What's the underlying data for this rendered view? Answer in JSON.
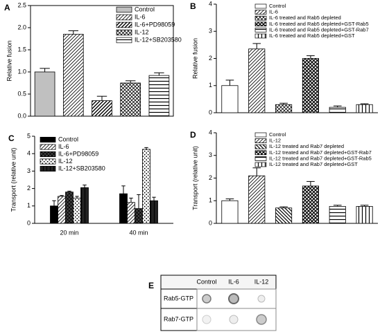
{
  "chart_data": [
    {
      "type": "bar",
      "label": "A",
      "ylabel": "Relative fusion",
      "ylim": [
        0,
        2.5
      ],
      "yticks": [
        {
          "value": 0,
          "label": "0.0"
        },
        {
          "value": 0.5,
          "label": "0.5"
        },
        {
          "value": 1,
          "label": "1.0"
        },
        {
          "value": 1.5,
          "label": "1.5"
        },
        {
          "value": 2,
          "label": "2.0"
        },
        {
          "value": 2.5,
          "label": "2.5"
        }
      ],
      "series": [
        {
          "name": "Control",
          "color": "#c0c0c0",
          "values": [
            1.0
          ],
          "errors": [
            0.08
          ]
        },
        {
          "name": "IL-6",
          "color": "#ffffff",
          "values": [
            1.85
          ],
          "errors": [
            0.08
          ]
        },
        {
          "name": "IL-6+PD98059",
          "color": "#ffffff",
          "values": [
            0.35
          ],
          "errors": [
            0.1
          ]
        },
        {
          "name": "IL-12",
          "color": "#ffffff",
          "values": [
            0.75
          ],
          "errors": [
            0.05
          ]
        },
        {
          "name": "IL-12+SB203580",
          "color": "#ffffff",
          "values": [
            0.92
          ],
          "errors": [
            0.06
          ]
        }
      ]
    },
    {
      "type": "bar",
      "label": "B",
      "ylabel": "Relative fusion",
      "ylim": [
        0,
        4
      ],
      "yticks": [
        0,
        1,
        2,
        3,
        4
      ],
      "series": [
        {
          "name": "Control",
          "color": "#ffffff",
          "values": [
            1.0
          ],
          "errors": [
            0.2
          ]
        },
        {
          "name": "IL-6",
          "color": "#ffffff",
          "values": [
            2.35
          ],
          "errors": [
            0.2
          ]
        },
        {
          "name": "IL-6 treated and Rab5 depleted",
          "color": "#ffffff",
          "values": [
            0.3
          ],
          "errors": [
            0.05
          ]
        },
        {
          "name": "IL-6 treated and Rab5 depleted+GST-Rab5",
          "color": "#ffffff",
          "values": [
            2.0
          ],
          "errors": [
            0.1
          ]
        },
        {
          "name": "IL-6 treated and Rab5 depleted+GST-Rab7",
          "color": "#ffffff",
          "values": [
            0.2
          ],
          "errors": [
            0.05
          ]
        },
        {
          "name": "IL-6 treated and Rab5 depleted+GST",
          "color": "#ffffff",
          "values": [
            0.3
          ],
          "errors": [
            0.03
          ]
        }
      ]
    },
    {
      "type": "bar",
      "label": "C",
      "ylabel": "Transport (relative unit)",
      "ylim": [
        0,
        5
      ],
      "yticks": [
        0,
        1,
        2,
        3,
        4,
        5
      ],
      "categories": [
        "20 min",
        "40 min"
      ],
      "series": [
        {
          "name": "Control",
          "color": "#000000",
          "values": [
            1.0,
            1.7
          ],
          "errors": [
            0.3,
            0.45
          ]
        },
        {
          "name": "IL-6",
          "color": "#ffffff",
          "values": [
            1.55,
            1.2
          ],
          "errors": [
            0.05,
            0.25
          ]
        },
        {
          "name": "IL-6+PD98059",
          "color": "#444444",
          "values": [
            1.8,
            0.85
          ],
          "errors": [
            0.05,
            0.8
          ]
        },
        {
          "name": "IL-12",
          "color": "#ffffff",
          "values": [
            1.45,
            4.25
          ],
          "errors": [
            0.1,
            0.1
          ]
        },
        {
          "name": "IL-12+SB203580",
          "color": "#222222",
          "values": [
            2.05,
            1.3
          ],
          "errors": [
            0.15,
            0.2
          ]
        }
      ]
    },
    {
      "type": "bar",
      "label": "D",
      "ylabel": "Transport (relative unit)",
      "ylim": [
        0,
        4
      ],
      "yticks": [
        0,
        1,
        2,
        3,
        4
      ],
      "series": [
        {
          "name": "Control",
          "color": "#ffffff",
          "values": [
            1.0
          ],
          "errors": [
            0.08
          ]
        },
        {
          "name": "IL-12",
          "color": "#ffffff",
          "values": [
            2.1
          ],
          "errors": [
            0.35
          ]
        },
        {
          "name": "IL-12 treated and Rab7 depleted",
          "color": "#ffffff",
          "values": [
            0.68
          ],
          "errors": [
            0.05
          ]
        },
        {
          "name": "IL-12 treated and Rab7 depleted+GST-Rab7",
          "color": "#ffffff",
          "values": [
            1.65
          ],
          "errors": [
            0.2
          ]
        },
        {
          "name": "IL-12 treated and Rab7 depleted+GST-Rab5",
          "color": "#ffffff",
          "values": [
            0.75
          ],
          "errors": [
            0.05
          ]
        },
        {
          "name": "IL-12 treated and Rab7 depleted+GST",
          "color": "#ffffff",
          "values": [
            0.75
          ],
          "errors": [
            0.05
          ]
        }
      ]
    }
  ],
  "blot": {
    "label": "E",
    "columns": [
      "Control",
      "IL-6",
      "IL-12"
    ],
    "rows": [
      "Rab5-GTP",
      "Rab7-GTP"
    ]
  }
}
